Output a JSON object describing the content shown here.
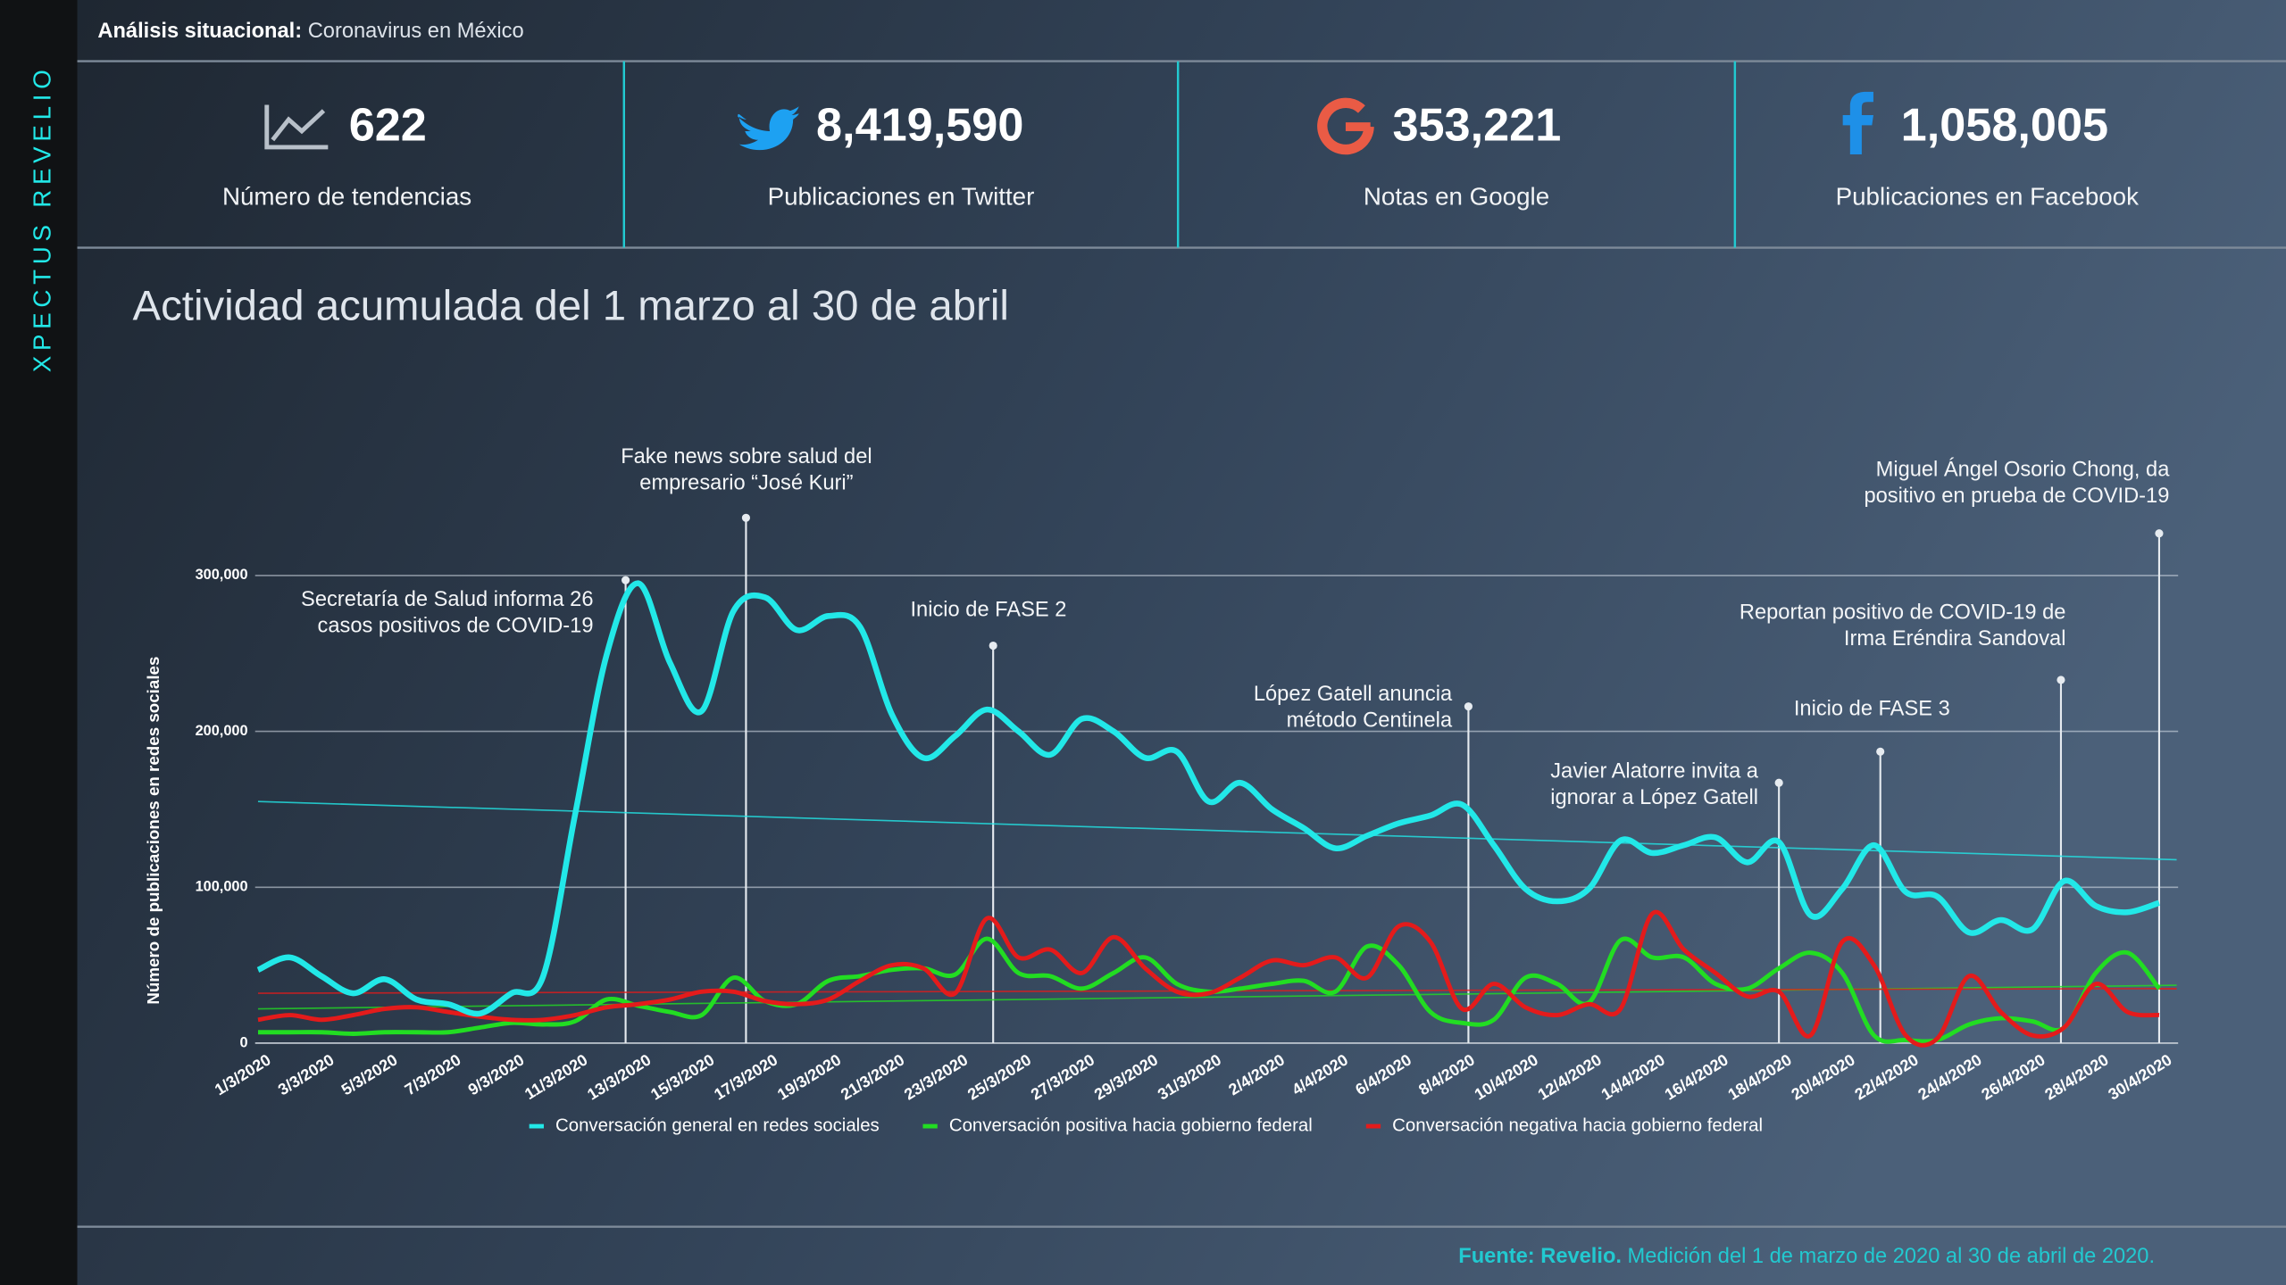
{
  "brand": "XPECTUS REVELIO",
  "header": {
    "title_bold": "Análisis  situacional:",
    "title_rest": " Coronavirus en México"
  },
  "stats": [
    {
      "value": "622",
      "label": "Número de tendencias"
    },
    {
      "value": "8,419,590",
      "label": "Publicaciones en Twitter"
    },
    {
      "value": "353,221",
      "label": "Notas en Google"
    },
    {
      "value": "1,058,005",
      "label": "Publicaciones en Facebook"
    }
  ],
  "chart_data": {
    "type": "line",
    "title": "Actividad acumulada del 1 marzo al 30 de abril",
    "y_label": "Número de publicaciones en redes sociales",
    "categories": [
      "1/3/2020",
      null,
      "3/3/2020",
      null,
      "5/3/2020",
      null,
      "7/3/2020",
      null,
      "9/3/2020",
      null,
      "11/3/2020",
      null,
      "13/3/2020",
      null,
      "15/3/2020",
      null,
      "17/3/2020",
      null,
      "19/3/2020",
      null,
      "21/3/2020",
      null,
      "23/3/2020",
      null,
      "25/3/2020",
      null,
      "27/3/2020",
      null,
      "29/3/2020",
      null,
      "31/3/2020",
      null,
      "2/4/2020",
      null,
      "4/4/2020",
      null,
      "6/4/2020",
      null,
      "8/4/2020",
      null,
      "10/4/2020",
      null,
      "12/4/2020",
      null,
      "14/4/2020",
      null,
      "16/4/2020",
      null,
      "18/4/2020",
      null,
      "20/4/2020",
      null,
      "22/4/2020",
      null,
      "24/4/2020",
      null,
      "26/4/2020",
      null,
      "28/4/2020",
      null,
      "30/4/2020"
    ],
    "ylim": [
      0,
      300000
    ],
    "yticks": [
      0,
      {
        "value": 100000,
        "label": "100,000"
      },
      {
        "value": 200000,
        "label": "200,000"
      },
      {
        "value": 300000,
        "label": "300,000"
      }
    ],
    "grid": true,
    "series": [
      {
        "name": "Conversación general en redes sociales",
        "color": "#22e8e8",
        "trend": [
          155000,
          118000
        ],
        "values": [
          47000,
          55000,
          43000,
          32000,
          41000,
          28000,
          25000,
          19000,
          32000,
          43000,
          146000,
          249000,
          295000,
          244000,
          213000,
          277000,
          286000,
          265000,
          274000,
          267000,
          211000,
          183000,
          197000,
          214000,
          200000,
          185000,
          208000,
          200000,
          183000,
          187000,
          155000,
          167000,
          150000,
          138000,
          125000,
          133000,
          141000,
          146000,
          153000,
          127000,
          99000,
          91000,
          99000,
          130000,
          122000,
          127000,
          132000,
          116000,
          129000,
          82000,
          99000,
          127000,
          97000,
          94000,
          71000,
          79000,
          73000,
          104000,
          88000,
          84000,
          90000
        ]
      },
      {
        "name": "Conversación positiva hacia gobierno federal",
        "color": "#22dd22",
        "trend": [
          22000,
          37000
        ],
        "values": [
          7000,
          7000,
          7000,
          6000,
          7000,
          7000,
          7000,
          10000,
          13000,
          12000,
          14000,
          28000,
          24000,
          20000,
          18000,
          42000,
          27000,
          25000,
          40000,
          43000,
          47000,
          48000,
          44000,
          67000,
          45000,
          43000,
          35000,
          45000,
          55000,
          38000,
          33000,
          35000,
          38000,
          40000,
          33000,
          62000,
          50000,
          20000,
          13000,
          15000,
          42000,
          38000,
          26000,
          66000,
          55000,
          55000,
          38000,
          35000,
          48000,
          58000,
          45000,
          5000,
          2000,
          2000,
          12000,
          16000,
          14000,
          10000,
          45000,
          58000,
          35000
        ]
      },
      {
        "name": "Conversación negativa hacia gobierno federal",
        "color": "#e41b1b",
        "trend": [
          32000,
          35000
        ],
        "values": [
          15000,
          18000,
          15000,
          18000,
          22000,
          23000,
          20000,
          17000,
          15000,
          15000,
          18000,
          23000,
          25000,
          28000,
          33000,
          33000,
          27000,
          25000,
          28000,
          40000,
          50000,
          48000,
          32000,
          80000,
          55000,
          60000,
          45000,
          68000,
          48000,
          33000,
          32000,
          42000,
          53000,
          50000,
          55000,
          42000,
          75000,
          65000,
          22000,
          38000,
          23000,
          18000,
          25000,
          22000,
          83000,
          60000,
          45000,
          30000,
          33000,
          5000,
          65000,
          50000,
          5000,
          3000,
          43000,
          20000,
          5000,
          10000,
          38000,
          20000,
          18000
        ]
      }
    ],
    "annotations": [
      {
        "lines": [
          "Secretaría de Salud informa  26",
          "casos positivos de COVID-19"
        ],
        "at": 11.6,
        "y": 297000
      },
      {
        "lines": [
          "Fake news sobre salud del",
          "empresario “José Kuri”"
        ],
        "at": 15.4,
        "y": 337000
      },
      {
        "lines": [
          "Inicio de FASE 2"
        ],
        "at": 23.2,
        "y": 255000
      },
      {
        "lines": [
          "López Gatell anuncia",
          "método Centinela"
        ],
        "at": 38.2,
        "y": 216000
      },
      {
        "lines": [
          "Javier Alatorre invita a",
          "ignorar a López Gatell"
        ],
        "at": 48,
        "y": 167000
      },
      {
        "lines": [
          "Inicio de FASE 3"
        ],
        "at": 51.2,
        "y": 187000
      },
      {
        "lines": [
          "Reportan positivo de COVID-19 de",
          "Irma Eréndira Sandoval"
        ],
        "at": 56.9,
        "y": 233000
      },
      {
        "lines": [
          "Miguel Ángel Osorio Chong, da",
          "positivo en prueba de COVID-19"
        ],
        "at": 60,
        "y": 327000
      }
    ]
  },
  "footer": {
    "bold": "Fuente: Revelio.",
    "rest": " Medición del 1 de marzo de 2020 al 30 de abril de 2020."
  }
}
